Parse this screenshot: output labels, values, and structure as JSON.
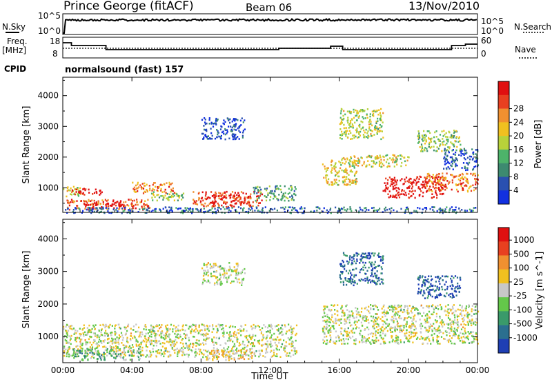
{
  "header": {
    "title": "Prince George (fitACF)",
    "beam": "Beam 06",
    "date": "13/Nov/2010"
  },
  "noise_panel": {
    "left_label": "N.Sky",
    "left_ticks": [
      "10^5",
      "10^0"
    ],
    "right_ticks": [
      "10^5",
      "10^0"
    ],
    "right_label": "N.Search"
  },
  "freq_panel": {
    "left_label_1": "Freq.",
    "left_label_2": "[MHz]",
    "left_ticks": [
      18,
      8
    ],
    "right_ticks": [
      60,
      0
    ],
    "right_label": "Nave"
  },
  "cpid": {
    "label": "CPID",
    "value": "normalsound (fast) 157"
  },
  "chart_data": [
    {
      "type": "heatmap",
      "name": "power",
      "ylabel": "Slant Range [km]",
      "yticks": [
        1000,
        2000,
        3000,
        4000
      ],
      "ylim": [
        200,
        4600
      ],
      "xlabel": "Time UT",
      "xticks": [
        "00:00",
        "04:00",
        "08:00",
        "12:00",
        "16:00",
        "20:00",
        "00:00"
      ],
      "colorbar_label": "Power [dB]",
      "colorbar_ticks": [
        4,
        8,
        12,
        16,
        20,
        24,
        28
      ],
      "colorbar_colors": [
        "#1230e0",
        "#2a50b0",
        "#3d8a70",
        "#4db36a",
        "#b8d23a",
        "#f0c020",
        "#f09030",
        "#e84020",
        "#e01010"
      ],
      "regions": [
        {
          "t0": 0.0,
          "t1": 1.0,
          "r0": 700,
          "r1": 1100,
          "level": 0.55
        },
        {
          "t0": 0.5,
          "t1": 2.5,
          "r0": 800,
          "r1": 1000,
          "level": 0.95
        },
        {
          "t0": 0.2,
          "t1": 5.0,
          "r0": 300,
          "r1": 650,
          "level": 0.8
        },
        {
          "t0": 1.0,
          "t1": 3.5,
          "r0": 400,
          "r1": 600,
          "level": 1.0
        },
        {
          "t0": 4.0,
          "t1": 6.5,
          "r0": 850,
          "r1": 1200,
          "level": 0.75
        },
        {
          "t0": 5.0,
          "t1": 7.0,
          "r0": 600,
          "r1": 900,
          "level": 0.45
        },
        {
          "t0": 7.5,
          "t1": 11.5,
          "r0": 400,
          "r1": 900,
          "level": 0.85
        },
        {
          "t0": 8.5,
          "t1": 10.5,
          "r0": 500,
          "r1": 800,
          "level": 0.95
        },
        {
          "t0": 11.0,
          "t1": 13.5,
          "r0": 600,
          "r1": 1100,
          "level": 0.35
        },
        {
          "t0": 8.0,
          "t1": 10.5,
          "r0": 2600,
          "r1": 3300,
          "level": 0.1
        },
        {
          "t0": 15.0,
          "t1": 17.0,
          "r0": 1100,
          "r1": 2000,
          "level": 0.6
        },
        {
          "t0": 16.5,
          "t1": 20.0,
          "r0": 1700,
          "r1": 2100,
          "level": 0.55
        },
        {
          "t0": 18.5,
          "t1": 22.0,
          "r0": 700,
          "r1": 1400,
          "level": 0.95
        },
        {
          "t0": 21.0,
          "t1": 24.0,
          "r0": 900,
          "r1": 1500,
          "level": 0.75
        },
        {
          "t0": 16.0,
          "t1": 18.5,
          "r0": 2600,
          "r1": 3600,
          "level": 0.5
        },
        {
          "t0": 20.5,
          "t1": 23.0,
          "r0": 2200,
          "r1": 2900,
          "level": 0.45
        },
        {
          "t0": 22.0,
          "t1": 24.0,
          "r0": 1600,
          "r1": 2300,
          "level": 0.15
        },
        {
          "t0": 0.0,
          "t1": 24.0,
          "r0": 200,
          "r1": 400,
          "level": 0.2
        }
      ]
    },
    {
      "type": "heatmap",
      "name": "velocity",
      "ylabel": "Slant Range [km]",
      "yticks": [
        1000,
        2000,
        3000,
        4000
      ],
      "ylim": [
        200,
        4600
      ],
      "xlabel": "Time UT",
      "xticks": [
        "00:00",
        "04:00",
        "08:00",
        "12:00",
        "16:00",
        "20:00",
        "00:00"
      ],
      "colorbar_label": "Velocity [m s^-1]",
      "colorbar_ticks": [
        1000,
        500,
        100,
        25,
        -25,
        -100,
        -500,
        -1000
      ],
      "colorbar_colors": [
        "#1f3fb4",
        "#2b6f8f",
        "#3a9a6a",
        "#64c84a",
        "#c8c8c8",
        "#f0c020",
        "#f09030",
        "#e84020",
        "#e01010"
      ],
      "regions": [
        {
          "t0": 0.0,
          "t1": 13.5,
          "r0": 400,
          "r1": 1400,
          "level": 0.5
        },
        {
          "t0": 0.5,
          "t1": 3.0,
          "r0": 300,
          "r1": 650,
          "level": 0.3
        },
        {
          "t0": 3.0,
          "t1": 4.5,
          "r0": 300,
          "r1": 600,
          "level": 0.35
        },
        {
          "t0": 8.0,
          "t1": 11.0,
          "r0": 300,
          "r1": 600,
          "level": 0.6
        },
        {
          "t0": 15.0,
          "t1": 24.0,
          "r0": 800,
          "r1": 2000,
          "level": 0.5
        },
        {
          "t0": 16.0,
          "t1": 18.5,
          "r0": 2600,
          "r1": 3600,
          "level": 0.15
        },
        {
          "t0": 20.5,
          "t1": 23.0,
          "r0": 2200,
          "r1": 2900,
          "level": 0.1
        },
        {
          "t0": 8.0,
          "t1": 10.5,
          "r0": 2600,
          "r1": 3300,
          "level": 0.5
        }
      ]
    }
  ]
}
